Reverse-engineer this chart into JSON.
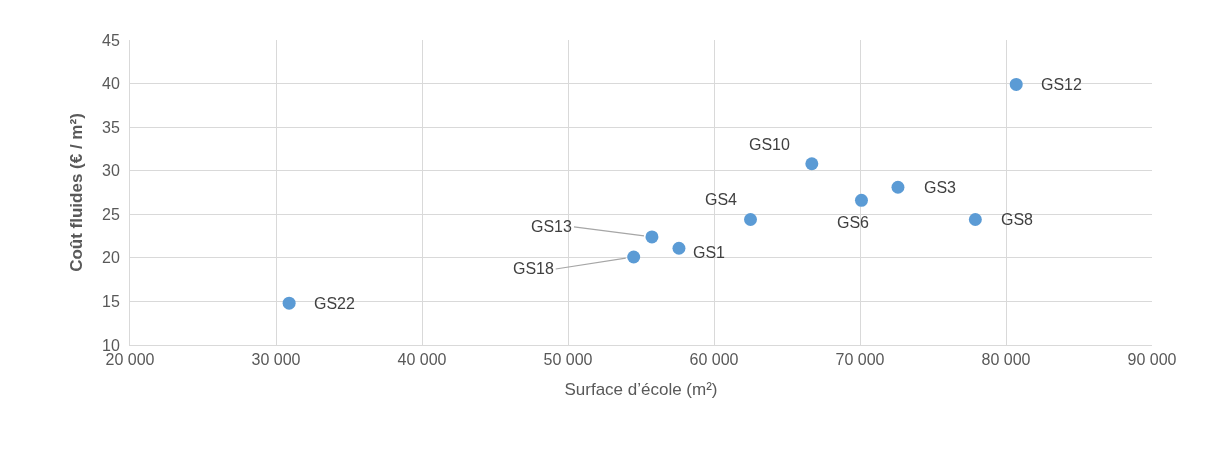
{
  "chart_data": {
    "type": "scatter",
    "xlabel": "Surface d’école (m²)",
    "ylabel": "Coût fluides (€ / m²)",
    "x": [
      30900,
      54500,
      55750,
      57600,
      62500,
      66700,
      70100,
      72600,
      77900,
      80700
    ],
    "series": [
      {
        "color": "#5b9bd5",
        "values": [
          14.8,
          20.1,
          22.4,
          21.1,
          24.4,
          30.8,
          26.6,
          28.1,
          24.4,
          39.9
        ]
      }
    ],
    "annotations": [
      {
        "text": "GS22",
        "x": 30900,
        "y": 14.8
      },
      {
        "text": "GS18",
        "x": 54500,
        "y": 20.1
      },
      {
        "text": "GS13",
        "x": 55750,
        "y": 22.4
      },
      {
        "text": "GS1",
        "x": 57600,
        "y": 21.1
      },
      {
        "text": "GS4",
        "x": 62500,
        "y": 24.4
      },
      {
        "text": "GS10",
        "x": 66700,
        "y": 30.8
      },
      {
        "text": "GS6",
        "x": 70100,
        "y": 26.6
      },
      {
        "text": "GS3",
        "x": 72600,
        "y": 28.1
      },
      {
        "text": "GS8",
        "x": 77900,
        "y": 24.4
      },
      {
        "text": "GS12",
        "x": 80700,
        "y": 39.9
      }
    ],
    "xlim": [
      20000,
      90000
    ],
    "xticks": [
      {
        "value": 20000,
        "label": "20 000"
      },
      {
        "value": 30000,
        "label": "30 000"
      },
      {
        "value": 40000,
        "label": "40 000"
      },
      {
        "value": 50000,
        "label": "50 000"
      },
      {
        "value": 60000,
        "label": "60 000"
      },
      {
        "value": 70000,
        "label": "70 000"
      },
      {
        "value": 80000,
        "label": "80 000"
      },
      {
        "value": 90000,
        "label": "90 000"
      }
    ],
    "ylim": [
      10,
      45
    ],
    "yticks": [
      10,
      15,
      20,
      25,
      30,
      35,
      40,
      45
    ],
    "grid": true,
    "marker": "circle"
  }
}
